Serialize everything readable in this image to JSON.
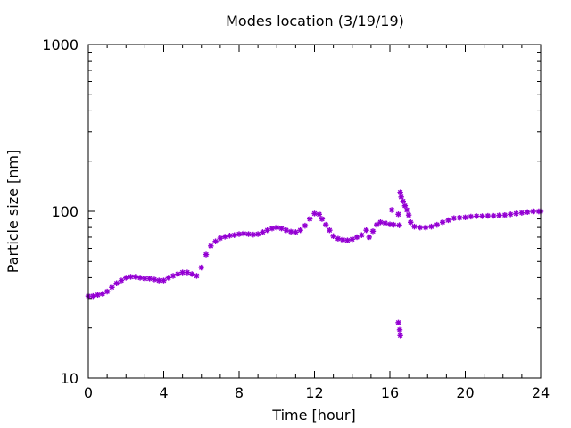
{
  "chart_data": {
    "type": "scatter",
    "title": "Modes location (3/19/19)",
    "xlabel": "Time [hour]",
    "ylabel": "Particle size [nm]",
    "xlim": [
      0,
      24
    ],
    "ylim": [
      10,
      1000
    ],
    "yscale": "log",
    "xticks": [
      0,
      4,
      8,
      12,
      16,
      20,
      24
    ],
    "xtick_labels": [
      "0",
      "4",
      "8",
      "12",
      "16",
      "20",
      "24"
    ],
    "yticks": [
      10,
      100,
      1000
    ],
    "ytick_labels": [
      "10",
      "100",
      "1000"
    ],
    "grid": false,
    "legend": "none",
    "marker_color": "#9400D3",
    "marker": "star",
    "x": [
      0,
      0.25,
      0.5,
      0.75,
      1.0,
      1.25,
      1.5,
      1.75,
      2.0,
      2.25,
      2.5,
      2.75,
      3.0,
      3.25,
      3.5,
      3.75,
      4.0,
      4.25,
      4.5,
      4.75,
      5.0,
      5.25,
      5.5,
      5.75,
      6.0,
      6.25,
      6.5,
      6.75,
      7.0,
      7.25,
      7.5,
      7.75,
      8.0,
      8.25,
      8.5,
      8.75,
      9.0,
      9.25,
      9.5,
      9.75,
      10.0,
      10.25,
      10.5,
      10.75,
      11.0,
      11.25,
      11.5,
      11.75,
      12.0,
      12.25,
      12.4,
      12.6,
      12.8,
      13.0,
      13.25,
      13.5,
      13.75,
      14.0,
      14.25,
      14.5,
      14.75,
      14.9,
      15.1,
      15.3,
      15.5,
      15.75,
      16.0,
      16.2,
      16.5,
      16.1,
      16.45,
      16.55,
      16.6,
      16.7,
      16.8,
      16.9,
      17.0,
      17.1,
      17.3,
      17.6,
      17.9,
      18.2,
      18.5,
      18.8,
      19.1,
      19.4,
      19.7,
      20.0,
      20.3,
      20.6,
      20.9,
      21.2,
      21.5,
      21.8,
      22.1,
      22.4,
      22.7,
      23.0,
      23.3,
      23.6,
      23.9,
      24.0,
      16.45,
      16.52,
      16.55
    ],
    "y": [
      31,
      31,
      31.5,
      32,
      33,
      35,
      37,
      38.5,
      40,
      40.5,
      40.5,
      40,
      39.5,
      39.5,
      39,
      38.5,
      38.5,
      40,
      41,
      42,
      43,
      43,
      42,
      41,
      46,
      55,
      62,
      66,
      69,
      70.5,
      71.5,
      72,
      73,
      73.5,
      73,
      72.5,
      73,
      75,
      77,
      79,
      80,
      79,
      77,
      75.5,
      75,
      77,
      82,
      90,
      97,
      96,
      90,
      83,
      77,
      71,
      68.5,
      67.5,
      67,
      68,
      70,
      72,
      77,
      70,
      76,
      83,
      86,
      85,
      83.5,
      83,
      82.5,
      102,
      96,
      130,
      122,
      115,
      108,
      102,
      95,
      86,
      81,
      80,
      80,
      81,
      83,
      86,
      88.5,
      91,
      91.5,
      92,
      93,
      93.5,
      93.5,
      94,
      94,
      94.5,
      95,
      96,
      97,
      98,
      99,
      100,
      100,
      100,
      21.5,
      19.5,
      18
    ]
  }
}
